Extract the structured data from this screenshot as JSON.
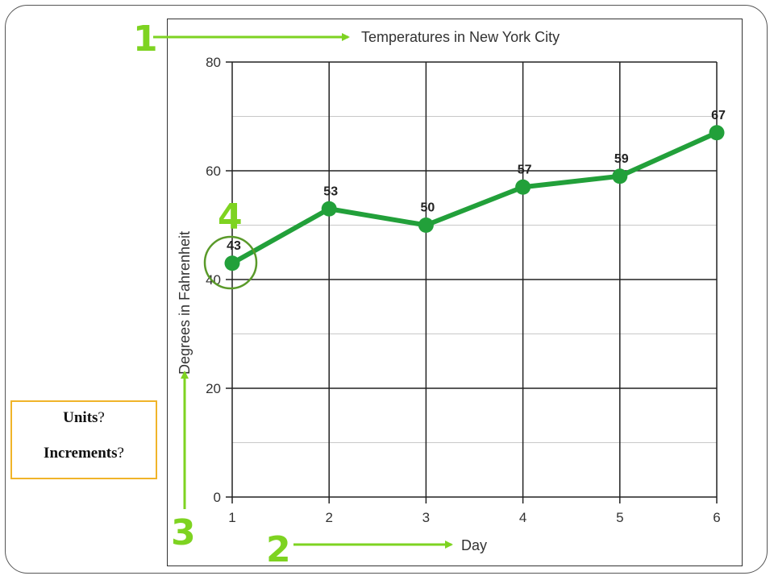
{
  "slide": {
    "note_box": {
      "line1_bold": "Units",
      "line1_rest": "?",
      "line2_bold": "Increments",
      "line2_rest": "?",
      "border_color": "#f0b429"
    },
    "callouts": [
      {
        "number": "1",
        "target": "title"
      },
      {
        "number": "2",
        "target": "x-axis-label"
      },
      {
        "number": "3",
        "target": "y-axis-label"
      },
      {
        "number": "4",
        "target": "first-data-point"
      }
    ],
    "callout_color": "#7ed321",
    "circle_color": "#5a9a2a"
  },
  "chart_data": {
    "type": "line",
    "title": "Temperatures in New York City",
    "xlabel": "Day",
    "ylabel": "Degrees in Fahrenheit",
    "x": [
      1,
      2,
      3,
      4,
      5,
      6
    ],
    "series": [
      {
        "values": [
          43,
          53,
          50,
          57,
          59,
          67
        ],
        "color": "#22a03a"
      }
    ],
    "data_labels": [
      "43",
      "53",
      "50",
      "57",
      "59",
      "67"
    ],
    "xlim": [
      1,
      6
    ],
    "ylim": [
      0,
      80
    ],
    "y_ticks": [
      0,
      20,
      40,
      60,
      80
    ],
    "x_ticks": [
      1,
      2,
      3,
      4,
      5,
      6
    ],
    "grid": true
  }
}
